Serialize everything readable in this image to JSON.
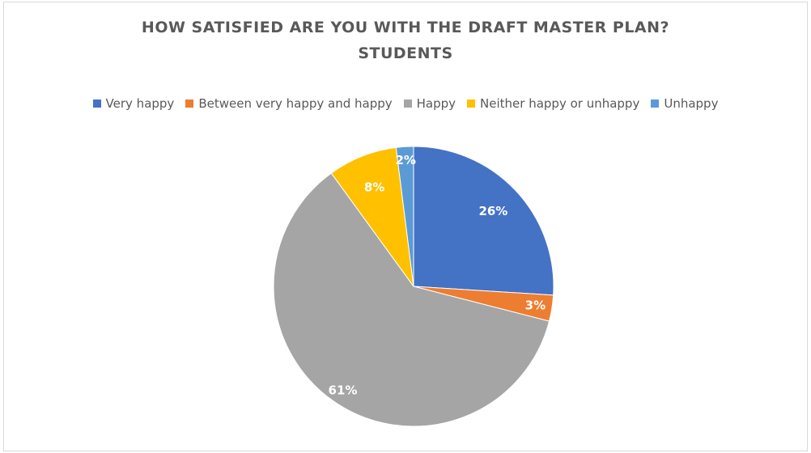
{
  "chart_data": {
    "type": "pie",
    "title": "HOW SATISFIED ARE YOU WITH THE DRAFT MASTER PLAN?",
    "subtitle": "STUDENTS",
    "legend_position": "top",
    "categories": [
      "Very happy",
      "Between very happy and happy",
      "Happy",
      "Neither happy or unhappy",
      "Unhappy"
    ],
    "values": [
      26,
      3,
      61,
      8,
      2
    ],
    "labels": [
      "26%",
      "3%",
      "61%",
      "8%",
      "2%"
    ],
    "colors": [
      "#4472c4",
      "#ed7d31",
      "#a5a5a5",
      "#ffc000",
      "#5b9bd5"
    ]
  }
}
